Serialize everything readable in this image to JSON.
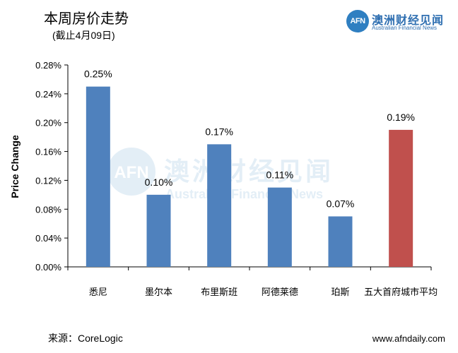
{
  "header": {
    "title": "本周房价走势",
    "subtitle": "(截止4月09日)"
  },
  "logo": {
    "mark": "AFN",
    "name_cn": "澳洲财经见闻",
    "name_en": "Australian Financial News"
  },
  "footer": {
    "source": "来源：CoreLogic",
    "site": "www.afndaily.com"
  },
  "watermark": {
    "mark": "AFN",
    "name_cn": "澳洲财经见闻",
    "name_en": "Australian Financial News"
  },
  "colors": {
    "bar_default": "#4f81bd",
    "bar_highlight": "#c0504d",
    "logo_blue": "#2f7fc1"
  },
  "chart_data": {
    "type": "bar",
    "ylabel": "Price Change",
    "xlabel": "",
    "ylim": [
      0,
      0.28
    ],
    "y_ticks": [
      0.0,
      0.04,
      0.08,
      0.12,
      0.16,
      0.2,
      0.24,
      0.28
    ],
    "y_tick_labels": [
      "0.00%",
      "0.04%",
      "0.08%",
      "0.12%",
      "0.16%",
      "0.20%",
      "0.24%",
      "0.28%"
    ],
    "grid": false,
    "categories": [
      "悉尼",
      "墨尔本",
      "布里斯班",
      "阿德莱德",
      "珀斯",
      "五大首府城市平均"
    ],
    "values": [
      0.25,
      0.1,
      0.17,
      0.11,
      0.07,
      0.19
    ],
    "data_labels": [
      "0.25%",
      "0.10%",
      "0.17%",
      "0.11%",
      "0.07%",
      "0.19%"
    ],
    "highlight_index": 5
  }
}
